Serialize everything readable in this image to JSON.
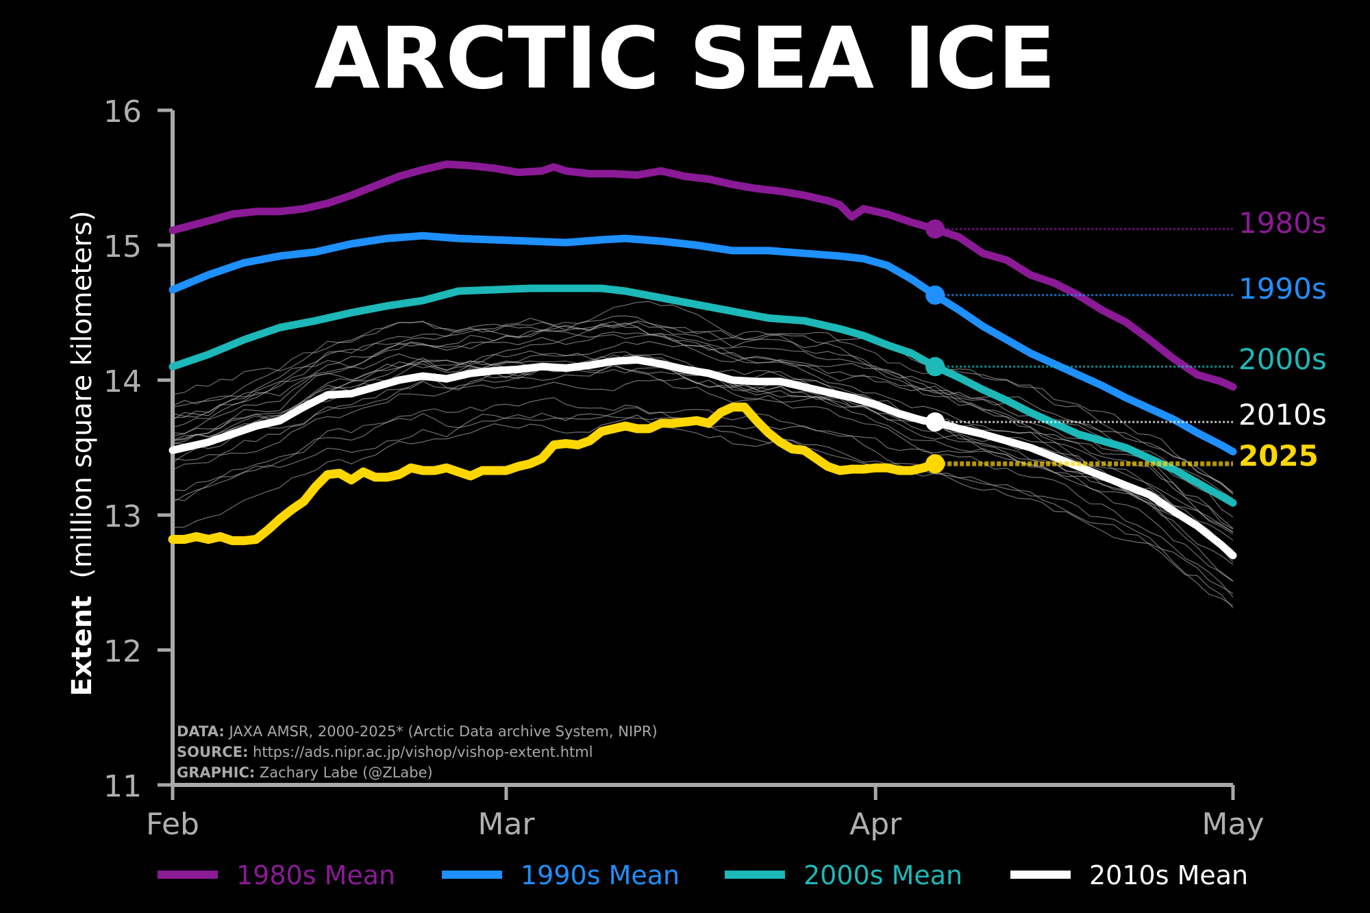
{
  "chart_data": {
    "type": "line",
    "title": "ARCTIC SEA ICE",
    "ylabel_bold": "Extent",
    "ylabel_rest": "(million square kilometers)",
    "ylim": [
      11,
      16
    ],
    "yticks": [
      "11",
      "12",
      "13",
      "14",
      "15",
      "16"
    ],
    "xlim": [
      0,
      89
    ],
    "xticks": [
      {
        "label": "Feb",
        "x": 0
      },
      {
        "label": "Mar",
        "x": 28
      },
      {
        "label": "Apr",
        "x": 59
      },
      {
        "label": "May",
        "x": 89
      }
    ],
    "grid": false,
    "legend_placement": "bottom",
    "legend": [
      {
        "label": "1980s Mean",
        "color": "#8B1A96"
      },
      {
        "label": "1990s Mean",
        "color": "#1E90FF"
      },
      {
        "label": "2000s Mean",
        "color": "#1DB8B8"
      },
      {
        "label": "2010s Mean",
        "color": "#FFFFFF"
      }
    ],
    "marker_x": 64,
    "series": [
      {
        "name": "1980s",
        "end_label": "1980s",
        "color": "#8B1A96",
        "x": [
          0,
          3,
          5,
          7,
          9,
          11,
          13,
          15,
          17,
          19,
          21,
          23,
          25,
          27,
          29,
          31,
          32,
          33,
          35,
          37,
          39,
          41,
          43,
          45,
          47,
          49,
          51,
          53,
          55,
          56,
          57,
          58,
          60,
          62,
          64,
          66,
          68,
          70,
          72,
          74,
          76,
          78,
          80,
          82,
          84,
          86,
          88,
          89
        ],
        "values": [
          15.11,
          15.18,
          15.23,
          15.25,
          15.25,
          15.27,
          15.31,
          15.37,
          15.44,
          15.51,
          15.56,
          15.6,
          15.59,
          15.57,
          15.54,
          15.55,
          15.58,
          15.55,
          15.53,
          15.53,
          15.52,
          15.55,
          15.51,
          15.49,
          15.45,
          15.42,
          15.4,
          15.37,
          15.33,
          15.3,
          15.21,
          15.27,
          15.23,
          15.17,
          15.12,
          15.06,
          14.94,
          14.89,
          14.78,
          14.72,
          14.63,
          14.52,
          14.43,
          14.3,
          14.16,
          14.04,
          13.99,
          13.95
        ]
      },
      {
        "name": "1990s",
        "end_label": "1990s",
        "color": "#1E90FF",
        "x": [
          0,
          3,
          6,
          9,
          12,
          15,
          18,
          21,
          24,
          27,
          30,
          33,
          36,
          38,
          41,
          44,
          47,
          50,
          53,
          56,
          58,
          60,
          62,
          64,
          66,
          68,
          70,
          72,
          74,
          76,
          78,
          80,
          82,
          84,
          86,
          88,
          89
        ],
        "values": [
          14.67,
          14.78,
          14.87,
          14.92,
          14.95,
          15.01,
          15.05,
          15.07,
          15.05,
          15.04,
          15.03,
          15.02,
          15.04,
          15.05,
          15.03,
          15.0,
          14.96,
          14.96,
          14.94,
          14.92,
          14.9,
          14.85,
          14.75,
          14.63,
          14.52,
          14.4,
          14.3,
          14.2,
          14.12,
          14.04,
          13.96,
          13.87,
          13.79,
          13.71,
          13.61,
          13.52,
          13.47
        ]
      },
      {
        "name": "2000s",
        "end_label": "2000s",
        "color": "#1DB8B8",
        "x": [
          0,
          3,
          6,
          9,
          12,
          15,
          18,
          21,
          24,
          27,
          30,
          33,
          36,
          38,
          41,
          44,
          47,
          50,
          53,
          56,
          58,
          60,
          62,
          64,
          66,
          68,
          70,
          72,
          74,
          76,
          78,
          80,
          82,
          84,
          86,
          88,
          89
        ],
        "values": [
          14.1,
          14.19,
          14.3,
          14.39,
          14.44,
          14.5,
          14.55,
          14.59,
          14.66,
          14.67,
          14.68,
          14.68,
          14.68,
          14.66,
          14.61,
          14.56,
          14.51,
          14.46,
          14.44,
          14.38,
          14.33,
          14.26,
          14.2,
          14.1,
          14.02,
          13.93,
          13.85,
          13.76,
          13.68,
          13.6,
          13.55,
          13.5,
          13.42,
          13.34,
          13.24,
          13.14,
          13.09
        ]
      },
      {
        "name": "2010s",
        "end_label": "2010s",
        "color": "#FFFFFF",
        "x": [
          0,
          3,
          5,
          7,
          9,
          11,
          13,
          15,
          17,
          19,
          21,
          23,
          25,
          27,
          29,
          31,
          33,
          35,
          37,
          39,
          41,
          43,
          45,
          47,
          49,
          51,
          53,
          55,
          57,
          59,
          61,
          63,
          64,
          66,
          68,
          70,
          72,
          74,
          76,
          78,
          80,
          82,
          84,
          86,
          88,
          89
        ],
        "values": [
          13.48,
          13.54,
          13.6,
          13.66,
          13.7,
          13.8,
          13.89,
          13.9,
          13.95,
          14.0,
          14.03,
          14.01,
          14.05,
          14.07,
          14.08,
          14.1,
          14.09,
          14.11,
          14.14,
          14.15,
          14.12,
          14.08,
          14.05,
          14.0,
          13.99,
          13.99,
          13.95,
          13.91,
          13.87,
          13.82,
          13.75,
          13.7,
          13.69,
          13.64,
          13.6,
          13.55,
          13.5,
          13.43,
          13.36,
          13.29,
          13.22,
          13.15,
          13.03,
          12.92,
          12.78,
          12.7
        ]
      },
      {
        "name": "2025",
        "end_label": "2025",
        "color": "#FFD700",
        "x": [
          0,
          1,
          2,
          3,
          4,
          5,
          6,
          7,
          8,
          9,
          10,
          11,
          12,
          13,
          14,
          15,
          16,
          17,
          18,
          19,
          20,
          21,
          22,
          23,
          24,
          25,
          26,
          27,
          28,
          29,
          30,
          31,
          32,
          33,
          34,
          35,
          36,
          37,
          38,
          39,
          40,
          41,
          42,
          43,
          44,
          45,
          46,
          47,
          48,
          49,
          50,
          51,
          52,
          53,
          54,
          55,
          56,
          57,
          58,
          59,
          60,
          61,
          62,
          63,
          64
        ],
        "values": [
          12.82,
          12.82,
          12.84,
          12.82,
          12.84,
          12.81,
          12.81,
          12.82,
          12.89,
          12.97,
          13.04,
          13.1,
          13.21,
          13.3,
          13.31,
          13.26,
          13.32,
          13.28,
          13.28,
          13.3,
          13.35,
          13.33,
          13.33,
          13.35,
          13.32,
          13.29,
          13.33,
          13.33,
          13.33,
          13.36,
          13.38,
          13.42,
          13.52,
          13.53,
          13.52,
          13.55,
          13.62,
          13.64,
          13.66,
          13.64,
          13.64,
          13.68,
          13.68,
          13.69,
          13.7,
          13.68,
          13.76,
          13.8,
          13.8,
          13.7,
          13.61,
          13.54,
          13.49,
          13.48,
          13.42,
          13.36,
          13.33,
          13.34,
          13.34,
          13.35,
          13.35,
          13.33,
          13.33,
          13.35,
          13.38
        ]
      }
    ]
  },
  "credits": [
    {
      "label": "DATA:",
      "text": " JAXA AMSR, 2000-2025* (Arctic Data archive System, NIPR)"
    },
    {
      "label": "SOURCE:",
      "text": " https://ads.nipr.ac.jp/vishop/vishop-extent.html"
    },
    {
      "label": "GRAPHIC:",
      "text": " Zachary Labe (@ZLabe)"
    }
  ]
}
